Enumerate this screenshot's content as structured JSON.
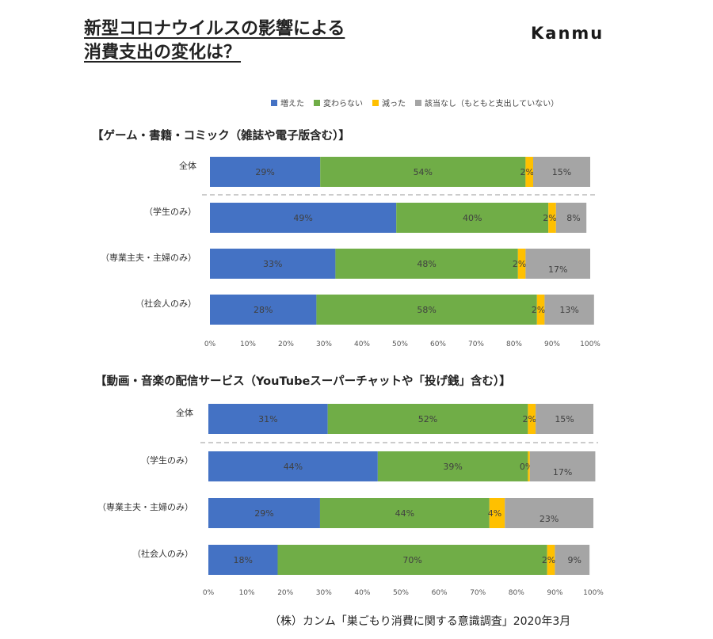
{
  "header": {
    "title_line1": "新型コロナウイルスの影響による",
    "title_line2": "消費支出の変化は？",
    "logo": "Kanmu"
  },
  "footer": "（株）カンム「巣ごもり消費に関する意識調査」2020年3月",
  "chart_data": [
    {
      "type": "bar",
      "orientation": "horizontal-stacked-100",
      "title": "【ゲーム・書籍・コミック（雑誌や電子版含む）】",
      "categories": [
        "全体",
        "（学生のみ）",
        "（専業主夫・主婦のみ）",
        "（社会人のみ）"
      ],
      "series": [
        {
          "name": "増えた",
          "values": [
            29,
            49,
            33,
            28
          ],
          "labels": [
            "29%",
            "49%",
            "33%",
            "28%"
          ]
        },
        {
          "name": "変わらない",
          "values": [
            54,
            40,
            48,
            58
          ],
          "labels": [
            "54%",
            "40%",
            "48%",
            "58%"
          ]
        },
        {
          "name": "減った",
          "values": [
            2,
            2,
            2,
            2
          ],
          "labels": [
            "2%",
            "2%",
            "2%",
            "2%"
          ]
        },
        {
          "name": "該当なし（もともと支出していない）",
          "values": [
            15,
            8,
            17,
            13
          ],
          "labels": [
            "15%",
            "8%",
            "17%",
            "13%"
          ]
        }
      ],
      "xlim": [
        0,
        100
      ],
      "xticks": [
        "0%",
        "10%",
        "20%",
        "30%",
        "40%",
        "50%",
        "60%",
        "70%",
        "80%",
        "90%",
        "100%"
      ]
    },
    {
      "type": "bar",
      "orientation": "horizontal-stacked-100",
      "title": "【動画・音楽の配信サービス（YouTubeスーパーチャットや「投げ銭」含む）】",
      "categories": [
        "全体",
        "（学生のみ）",
        "（専業主夫・主婦のみ）",
        "（社会人のみ）"
      ],
      "series": [
        {
          "name": "増えた",
          "values": [
            31,
            44,
            29,
            18
          ],
          "labels": [
            "31%",
            "44%",
            "29%",
            "18%"
          ]
        },
        {
          "name": "変わらない",
          "values": [
            52,
            39,
            44,
            70
          ],
          "labels": [
            "52%",
            "39%",
            "44%",
            "70%"
          ]
        },
        {
          "name": "減った",
          "values": [
            2,
            0.5,
            4,
            2
          ],
          "labels": [
            "2%",
            "0%",
            "4%",
            "2%"
          ]
        },
        {
          "name": "該当なし（もともと支出していない）",
          "values": [
            15,
            17,
            23,
            9
          ],
          "labels": [
            "15%",
            "17%",
            "23%",
            "9%"
          ]
        }
      ],
      "xlim": [
        0,
        100
      ],
      "xticks": [
        "0%",
        "10%",
        "20%",
        "30%",
        "40%",
        "50%",
        "60%",
        "70%",
        "80%",
        "90%",
        "100%"
      ]
    }
  ],
  "legend": [
    {
      "name": "増えた",
      "color": "#4472c4"
    },
    {
      "name": "変わらない",
      "color": "#70ad47"
    },
    {
      "name": "減った",
      "color": "#ffc000"
    },
    {
      "name": "該当なし（もともと支出していない）",
      "color": "#a5a5a5"
    }
  ]
}
